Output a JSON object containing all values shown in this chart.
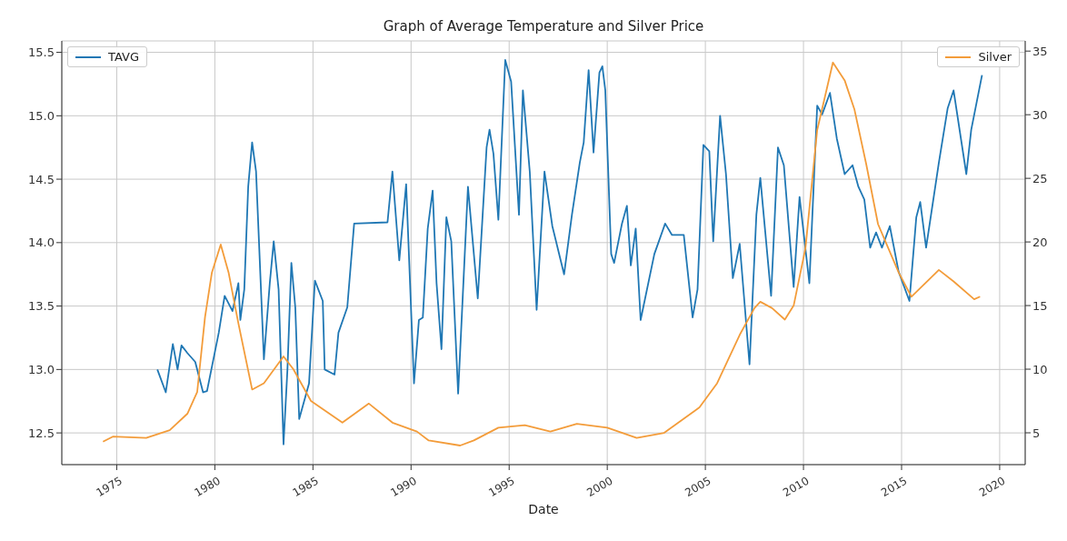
{
  "chart_data": {
    "type": "line",
    "title": "Graph of Average Temperature and Silver Price",
    "xlabel": "Date",
    "xlim": [
      1972.2,
      2021.3
    ],
    "xticks": [
      1975,
      1980,
      1985,
      1990,
      1995,
      2000,
      2005,
      2010,
      2015,
      2020
    ],
    "ylim": [
      12.25,
      15.59
    ],
    "yticks": [
      12.5,
      {
        "value": 13,
        "label": "13.0"
      },
      13.5,
      {
        "value": 14,
        "label": "14.0"
      },
      14.5,
      {
        "value": 15,
        "label": "15.0"
      },
      15.5
    ],
    "y2lim": [
      2.5,
      35.8
    ],
    "y2ticks": [
      5,
      10,
      15,
      20,
      25,
      30,
      35
    ],
    "grid": true,
    "legend": "top",
    "marker": "none",
    "line_style": "solid",
    "series": [
      {
        "name": "TAVG",
        "color": "#1f77b4",
        "x": [
          1977.07,
          1977.5,
          1977.86,
          1978.1,
          1978.3,
          1978.6,
          1979.0,
          1979.4,
          1979.6,
          1980.2,
          1980.5,
          1980.9,
          1981.2,
          1981.3,
          1981.5,
          1981.7,
          1981.9,
          1982.1,
          1982.5,
          1982.8,
          1983.0,
          1983.25,
          1983.5,
          1983.7,
          1983.9,
          1984.1,
          1984.3,
          1984.8,
          1985.1,
          1985.5,
          1985.6,
          1986.1,
          1986.3,
          1986.75,
          1987.1,
          1988.8,
          1989.05,
          1989.4,
          1989.75,
          1990.15,
          1990.4,
          1990.6,
          1990.85,
          1991.1,
          1991.3,
          1991.55,
          1991.8,
          1992.05,
          1992.4,
          1992.9,
          1993.4,
          1993.85,
          1994.0,
          1994.2,
          1994.45,
          1994.8,
          1995.1,
          1995.5,
          1995.7,
          1996.05,
          1996.4,
          1996.8,
          1997.2,
          1997.8,
          1998.2,
          1998.6,
          1998.8,
          1999.05,
          1999.3,
          1999.6,
          1999.75,
          1999.9,
          2000.2,
          2000.35,
          2000.75,
          2001.0,
          2001.2,
          2001.45,
          2001.7,
          2002.4,
          2002.95,
          2003.3,
          2003.9,
          2004.35,
          2004.6,
          2004.9,
          2005.2,
          2005.4,
          2005.75,
          2006.05,
          2006.4,
          2006.75,
          2007.25,
          2007.6,
          2007.8,
          2008.35,
          2008.7,
          2009.0,
          2009.5,
          2009.8,
          2010.3,
          2010.7,
          2010.95,
          2011.35,
          2011.7,
          2012.1,
          2012.5,
          2012.8,
          2013.1,
          2013.4,
          2013.7,
          2014.0,
          2014.4,
          2014.85,
          2015.4,
          2015.75,
          2015.95,
          2016.25,
          2016.9,
          2017.35,
          2017.65,
          2018.3,
          2018.55,
          2019.1
        ],
        "values": [
          13.0,
          12.82,
          13.2,
          13.0,
          13.19,
          13.13,
          13.06,
          12.82,
          12.83,
          13.29,
          13.58,
          13.46,
          13.68,
          13.39,
          13.63,
          14.44,
          14.79,
          14.56,
          13.08,
          13.68,
          14.01,
          13.63,
          12.41,
          13.0,
          13.84,
          13.49,
          12.61,
          12.89,
          13.7,
          13.54,
          13.0,
          12.96,
          13.29,
          13.49,
          14.15,
          14.16,
          14.56,
          13.86,
          14.46,
          12.89,
          13.39,
          13.41,
          14.11,
          14.41,
          13.68,
          13.16,
          14.2,
          14.01,
          12.81,
          14.44,
          13.56,
          14.75,
          14.89,
          14.7,
          14.18,
          15.44,
          15.27,
          14.22,
          15.2,
          14.56,
          13.47,
          14.56,
          14.13,
          13.75,
          14.22,
          14.63,
          14.79,
          15.36,
          14.71,
          15.34,
          15.39,
          15.2,
          13.91,
          13.84,
          14.15,
          14.29,
          13.82,
          14.11,
          13.39,
          13.91,
          14.15,
          14.06,
          14.06,
          13.41,
          13.63,
          14.77,
          14.72,
          14.01,
          15.0,
          14.54,
          13.72,
          13.99,
          13.04,
          14.22,
          14.51,
          13.58,
          14.75,
          14.61,
          13.65,
          14.36,
          13.68,
          15.08,
          15.01,
          15.18,
          14.82,
          14.54,
          14.61,
          14.44,
          14.34,
          13.96,
          14.08,
          13.96,
          14.13,
          13.77,
          13.54,
          14.2,
          14.32,
          13.96,
          14.63,
          15.06,
          15.2,
          14.54,
          14.89,
          15.32
        ]
      },
      {
        "name": "Silver",
        "color": "#f39c3a",
        "axis": "y2",
        "x": [
          1974.3,
          1974.8,
          1976.5,
          1977.7,
          1978.6,
          1979.1,
          1979.5,
          1979.85,
          1980.3,
          1980.7,
          1981.2,
          1981.9,
          1982.5,
          1983.5,
          1984.0,
          1984.9,
          1986.5,
          1987.85,
          1989.05,
          1990.3,
          1990.9,
          1992.5,
          1993.2,
          1994.45,
          1995.8,
          1997.1,
          1998.45,
          2000.0,
          2001.5,
          2002.9,
          2004.7,
          2005.6,
          2006.75,
          2007.5,
          2007.8,
          2008.4,
          2009.05,
          2009.5,
          2010.1,
          2010.7,
          2011.5,
          2012.1,
          2012.6,
          2013.2,
          2013.8,
          2014.85,
          2015.5,
          2016.9,
          2017.65,
          2018.7,
          2019.0
        ],
        "values": [
          4.3,
          4.7,
          4.6,
          5.2,
          6.5,
          8.2,
          14.1,
          17.6,
          19.8,
          17.6,
          13.6,
          8.4,
          8.9,
          11.0,
          10.0,
          7.5,
          5.8,
          7.3,
          5.8,
          5.1,
          4.4,
          4.0,
          4.4,
          5.4,
          5.6,
          5.1,
          5.7,
          5.4,
          4.6,
          5.0,
          7.0,
          8.9,
          12.7,
          14.8,
          15.3,
          14.8,
          13.9,
          15.0,
          19.5,
          28.8,
          34.1,
          32.7,
          30.4,
          26.1,
          21.4,
          17.6,
          15.7,
          17.8,
          16.9,
          15.5,
          15.7
        ]
      }
    ]
  }
}
